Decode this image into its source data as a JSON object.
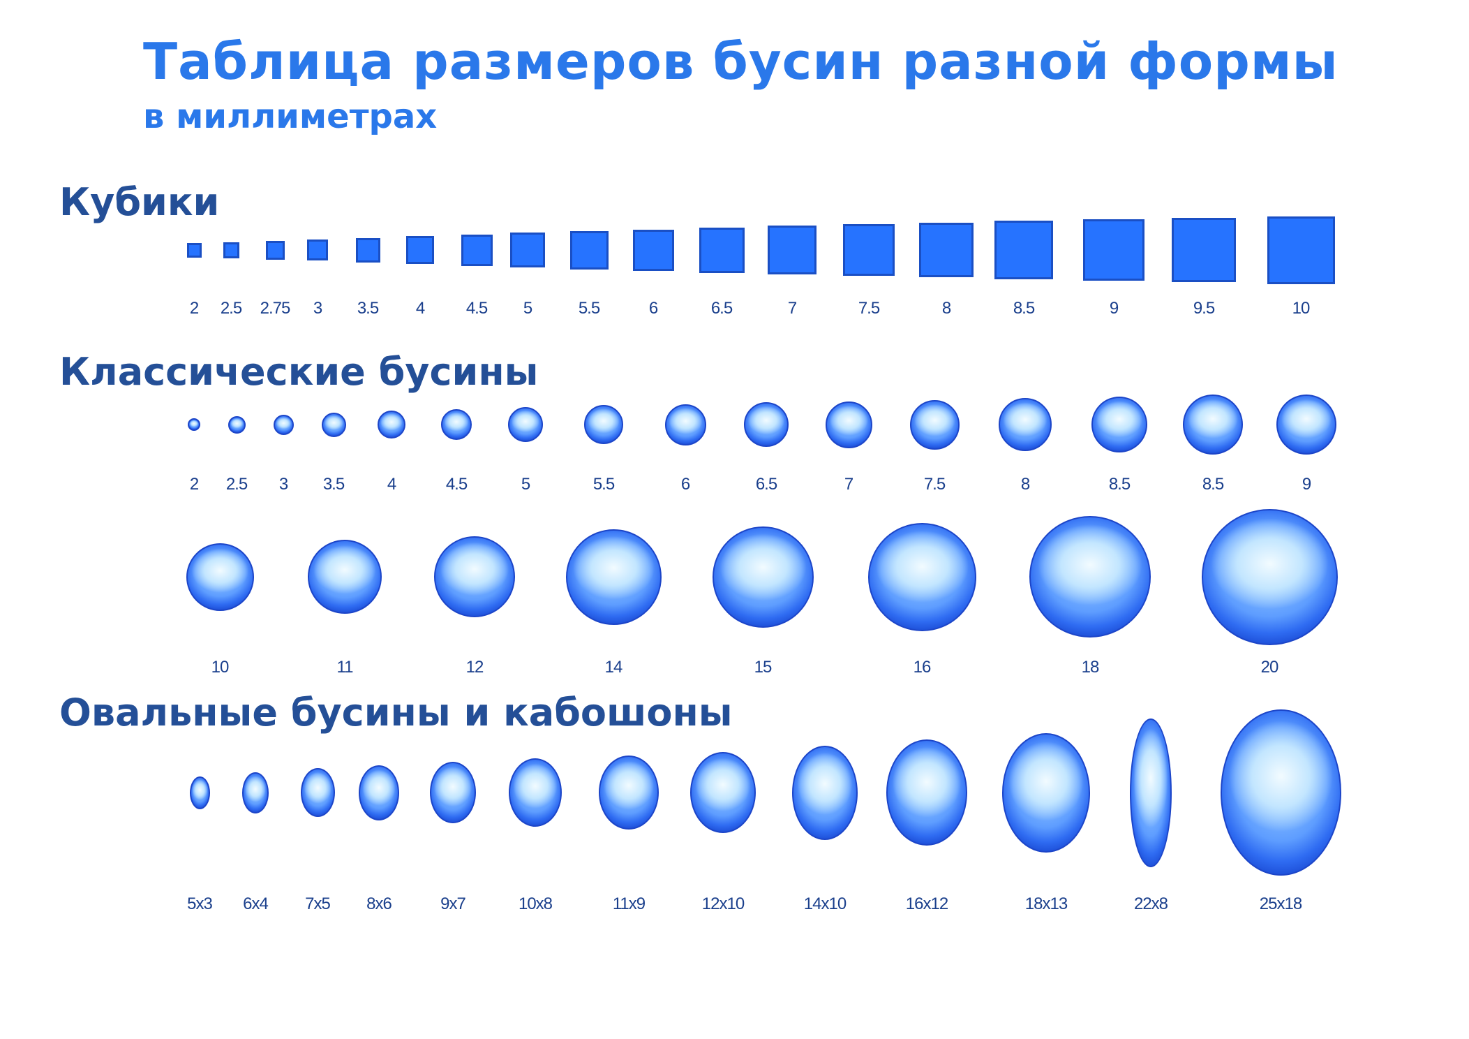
{
  "title": "Таблица размеров бусин разной формы",
  "subtitle": "в миллиметрах",
  "sections": {
    "cubes": {
      "title": "Кубики",
      "items": [
        {
          "label": "2",
          "size_mm": 2
        },
        {
          "label": "2.5",
          "size_mm": 2.5
        },
        {
          "label": "2.75",
          "size_mm": 2.75
        },
        {
          "label": "3",
          "size_mm": 3
        },
        {
          "label": "3.5",
          "size_mm": 3.5
        },
        {
          "label": "4",
          "size_mm": 4
        },
        {
          "label": "4.5",
          "size_mm": 4.5
        },
        {
          "label": "5",
          "size_mm": 5
        },
        {
          "label": "5.5",
          "size_mm": 5.5
        },
        {
          "label": "6",
          "size_mm": 6
        },
        {
          "label": "6.5",
          "size_mm": 6.5
        },
        {
          "label": "7",
          "size_mm": 7
        },
        {
          "label": "7.5",
          "size_mm": 7.5
        },
        {
          "label": "8",
          "size_mm": 8
        },
        {
          "label": "8.5",
          "size_mm": 8.5
        },
        {
          "label": "9",
          "size_mm": 9
        },
        {
          "label": "9.5",
          "size_mm": 9.5
        },
        {
          "label": "10",
          "size_mm": 10
        }
      ]
    },
    "classic": {
      "title": "Классические бусины",
      "row1": [
        {
          "label": "2",
          "size_mm": 2
        },
        {
          "label": "2.5",
          "size_mm": 2.5
        },
        {
          "label": "3",
          "size_mm": 3
        },
        {
          "label": "3.5",
          "size_mm": 3.5
        },
        {
          "label": "4",
          "size_mm": 4
        },
        {
          "label": "4.5",
          "size_mm": 4.5
        },
        {
          "label": "5",
          "size_mm": 5
        },
        {
          "label": "5.5",
          "size_mm": 5.5
        },
        {
          "label": "6",
          "size_mm": 6
        },
        {
          "label": "6.5",
          "size_mm": 6.5
        },
        {
          "label": "7",
          "size_mm": 7
        },
        {
          "label": "7.5",
          "size_mm": 7.5
        },
        {
          "label": "8",
          "size_mm": 8
        },
        {
          "label": "8.5",
          "size_mm": 8.5
        },
        {
          "label": "8.5",
          "size_mm": 8.5
        },
        {
          "label": "9",
          "size_mm": 9
        }
      ],
      "row2": [
        {
          "label": "10",
          "size_mm": 10
        },
        {
          "label": "11",
          "size_mm": 11
        },
        {
          "label": "12",
          "size_mm": 12
        },
        {
          "label": "14",
          "size_mm": 14
        },
        {
          "label": "15",
          "size_mm": 15
        },
        {
          "label": "16",
          "size_mm": 16
        },
        {
          "label": "18",
          "size_mm": 18
        },
        {
          "label": "20",
          "size_mm": 20
        }
      ]
    },
    "oval": {
      "title": "Овальные бусины и кабошоны",
      "items": [
        {
          "label": "5x3"
        },
        {
          "label": "6x4"
        },
        {
          "label": "7x5"
        },
        {
          "label": "8x6"
        },
        {
          "label": "9x7"
        },
        {
          "label": "10x8"
        },
        {
          "label": "11x9"
        },
        {
          "label": "12x10"
        },
        {
          "label": "14x10"
        },
        {
          "label": "16x12"
        },
        {
          "label": "18x13"
        },
        {
          "label": "22x8"
        },
        {
          "label": "25x18"
        }
      ]
    }
  },
  "colors": {
    "title": "#2a78ea",
    "section_title": "#244f97",
    "bead_blue": "#2673ff",
    "label": "#1a3f8c"
  }
}
